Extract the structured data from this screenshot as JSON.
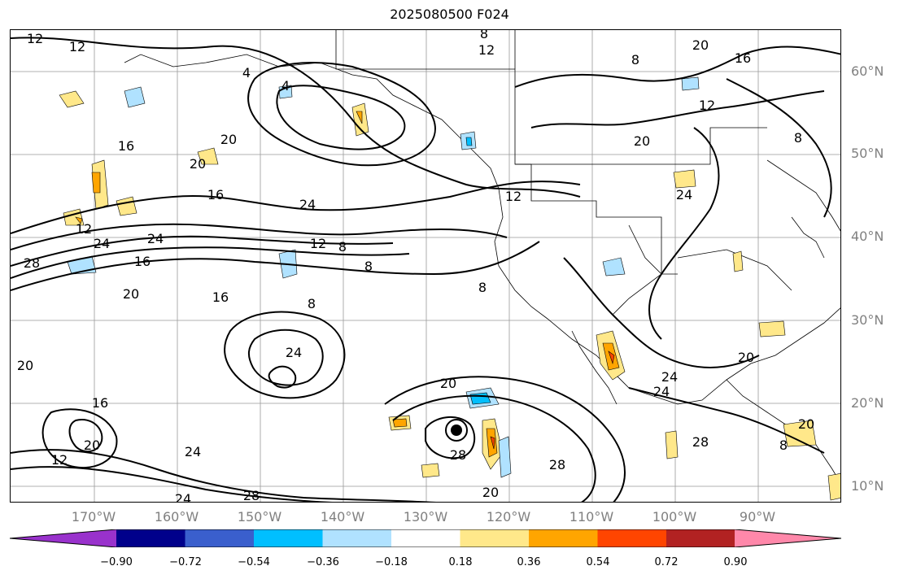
{
  "title": "2025080500 F024",
  "lat_labels": [
    "60°N",
    "50°N",
    "40°N",
    "30°N",
    "20°N",
    "10°N"
  ],
  "lon_labels": [
    "170°W",
    "160°W",
    "150°W",
    "140°W",
    "130°W",
    "120°W",
    "110°W",
    "100°W",
    "90°W"
  ],
  "contour_labels": [
    "12",
    "12",
    "8",
    "12",
    "20",
    "16",
    "4",
    "4",
    "8",
    "16",
    "20",
    "20",
    "16",
    "24",
    "12",
    "24",
    "28",
    "16",
    "8",
    "12",
    "16",
    "8",
    "8",
    "24",
    "20",
    "24",
    "20",
    "28",
    "24",
    "28",
    "20",
    "24",
    "20",
    "16",
    "20",
    "12",
    "24",
    "28",
    "12",
    "8",
    "8",
    "12",
    "20",
    "24",
    "24",
    "20",
    "28",
    "20",
    "8"
  ],
  "colorbar": {
    "tick_labels": [
      "−0.90",
      "−0.72",
      "−0.54",
      "−0.36",
      "−0.18",
      "0.18",
      "0.36",
      "0.54",
      "0.72",
      "0.90"
    ],
    "colors": [
      "#9932cc",
      "#00008b",
      "#3a5fcd",
      "#00bfff",
      "#b0e2ff",
      "#ffffff",
      "#ffe88a",
      "#ffa500",
      "#ff4500",
      "#b22222",
      "#ff88aa"
    ]
  }
}
